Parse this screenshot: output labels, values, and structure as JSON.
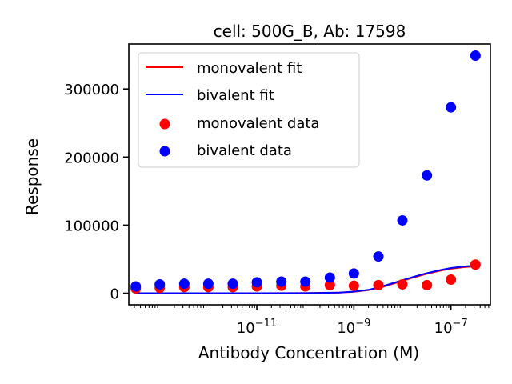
{
  "chart_data": {
    "type": "scatter",
    "title": "cell: 500G_B, Ab: 17598",
    "xlabel": "Antibody Concentration (M)",
    "ylabel": "Response",
    "xscale": "log",
    "xlim": [
      2.3e-14,
      6.5e-07
    ],
    "ylim": [
      -17000,
      366000
    ],
    "grid": false,
    "legend_position": "top-left",
    "x_ticks": [
      {
        "value": 1e-11,
        "base": "10",
        "exp": "−11"
      },
      {
        "value": 1e-09,
        "base": "10",
        "exp": "−9"
      },
      {
        "value": 1e-07,
        "base": "10",
        "exp": "−7"
      }
    ],
    "y_ticks": [
      {
        "value": 0,
        "label": "0"
      },
      {
        "value": 100000,
        "label": "100000"
      },
      {
        "value": 200000,
        "label": "200000"
      },
      {
        "value": 300000,
        "label": "300000"
      }
    ],
    "series": [
      {
        "name": "monovalent fit",
        "kind": "line",
        "color": "#ff0000",
        "x": [
          3.2e-14,
          1e-12,
          1e-11,
          1e-10,
          5e-10,
          1e-09,
          2e-09,
          4e-09,
          8e-09,
          1.5e-08,
          3e-08,
          6e-08,
          1e-07,
          2e-07,
          3.5e-07
        ],
        "y": [
          0,
          0,
          0,
          100,
          800,
          2000,
          4500,
          9500,
          16000,
          22000,
          28000,
          33000,
          36000,
          38500,
          39500
        ]
      },
      {
        "name": "bivalent fit",
        "kind": "line",
        "color": "#0000ff",
        "x": [
          3.2e-14,
          1e-12,
          1e-11,
          1e-10,
          5e-10,
          1e-09,
          2e-09,
          4e-09,
          8e-09,
          1.5e-08,
          3e-08,
          6e-08,
          1e-07,
          2e-07,
          3.5e-07
        ],
        "y": [
          0,
          0,
          0,
          200,
          1000,
          2400,
          5000,
          10500,
          17000,
          23000,
          29000,
          34000,
          37000,
          39500,
          40500
        ]
      },
      {
        "name": "monovalent data",
        "kind": "scatter",
        "color": "#ff0000",
        "x": [
          3.2e-14,
          1e-13,
          3.2e-13,
          1e-12,
          3.2e-12,
          1e-11,
          3.2e-11,
          1e-10,
          3.2e-10,
          1e-09,
          3.2e-09,
          1e-08,
          3.2e-08,
          1e-07,
          3.2e-07
        ],
        "y": [
          7000,
          8000,
          9000,
          9000,
          9000,
          10000,
          11000,
          10000,
          12000,
          11000,
          12000,
          13000,
          12000,
          20000,
          42000
        ]
      },
      {
        "name": "bivalent data",
        "kind": "scatter",
        "color": "#0000ff",
        "x": [
          3.2e-14,
          1e-13,
          3.2e-13,
          1e-12,
          3.2e-12,
          1e-11,
          3.2e-11,
          1e-10,
          3.2e-10,
          1e-09,
          3.2e-09,
          1e-08,
          3.2e-08,
          1e-07,
          3.2e-07
        ],
        "y": [
          10000,
          13000,
          14000,
          14000,
          14000,
          16000,
          17000,
          17000,
          23000,
          29000,
          54000,
          107000,
          173000,
          273000,
          349000
        ]
      }
    ]
  }
}
